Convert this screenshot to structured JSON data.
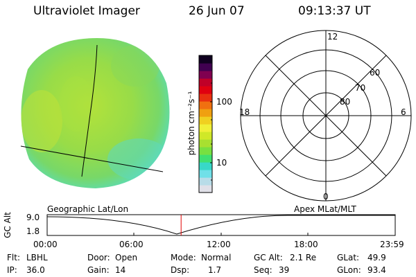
{
  "header": {
    "instrument": "Ultraviolet Imager",
    "date": "26 Jun 07",
    "time": "09:13:37 UT"
  },
  "colorbar": {
    "unit_label": "photon cm⁻²s⁻¹",
    "tick_labels": [
      "100",
      "10"
    ],
    "colors": [
      "#e0e0e8",
      "#b8dce8",
      "#70e0e8",
      "#38d8c8",
      "#40e070",
      "#78e040",
      "#a8e030",
      "#d0e828",
      "#f0f038",
      "#f0d020",
      "#f0a010",
      "#f07010",
      "#e83010",
      "#e00010",
      "#c00028",
      "#800050",
      "#400050",
      "#100020"
    ]
  },
  "polar_plot": {
    "labels": {
      "top": "12",
      "bottom": "0",
      "left": "18",
      "right": "6"
    },
    "ring_labels": [
      "60",
      "70",
      "80"
    ]
  },
  "timeline": {
    "y_axis_label": "GC Alt",
    "y_ticks": [
      "9.0",
      "1.8"
    ],
    "left_caption": "Geographic Lat/Lon",
    "right_caption": "Apex MLat/MLT",
    "time_ticks": [
      "00:00",
      "06:00",
      "12:00",
      "18:00",
      "23:59"
    ],
    "marker_time_hours": 9.23
  },
  "info": {
    "flt_label": "Flt:",
    "flt_value": "LBHL",
    "ip_label": "IP:",
    "ip_value": "36.0",
    "door_label": "Door:",
    "door_value": "Open",
    "gain_label": "Gain:",
    "gain_value": "14",
    "mode_label": "Mode:",
    "mode_value": "Normal",
    "dsp_label": "Dsp:",
    "dsp_value": "1.7",
    "gcalt_label": "GC Alt:",
    "gcalt_value": "2.1 Re",
    "seq_label": "Seq:",
    "seq_value": "39",
    "glat_label": "GLat:",
    "glat_value": "49.9",
    "glon_label": "GLon:",
    "glon_value": "93.4"
  }
}
